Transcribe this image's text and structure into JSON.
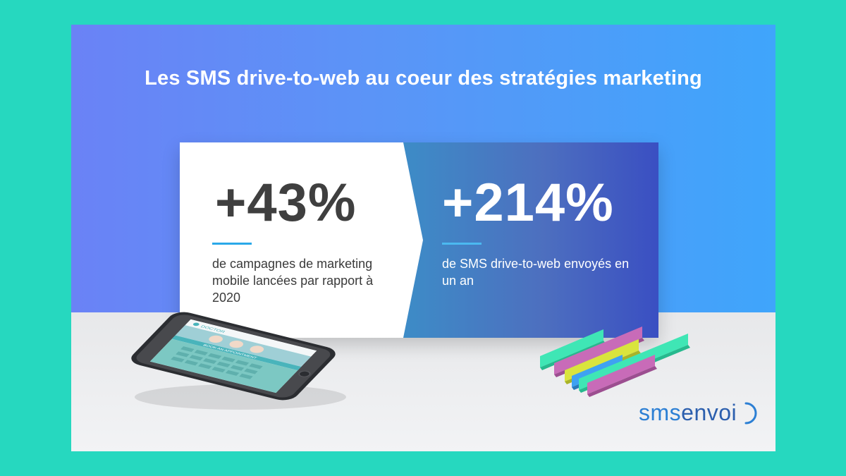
{
  "title": "Les SMS drive-to-web au coeur des stratégies marketing",
  "stats": [
    {
      "value": "+43%",
      "description": "de campagnes de marketing mobile lancées par rapport à 2020"
    },
    {
      "value": "+214%",
      "description": "de SMS drive-to-web envoyés en un an"
    }
  ],
  "phone_screen": {
    "header": "DOCTOR",
    "banner": "BOOK AN APPOINTMENT"
  },
  "brand": {
    "part1": "sms",
    "part2": "envoi"
  },
  "colors": {
    "page_background": "#26d8bf",
    "header_gradient_start": "#6a82f6",
    "header_gradient_end": "#3fa5fb",
    "accent_line": "#2aa9e9",
    "right_panel": "#4d6fbf"
  },
  "icons": [
    "smartphone-illustration",
    "bar-stack-illustration",
    "signal-arc-icon"
  ]
}
